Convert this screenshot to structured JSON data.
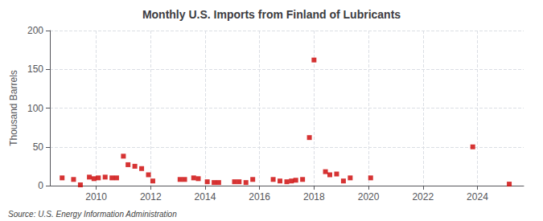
{
  "chart_data": {
    "type": "scatter",
    "title": "Monthly U.S. Imports from Finland of Lubricants",
    "ylabel": "Thousand Barrels",
    "annotations": [
      "Source: U.S. Energy Information Administration"
    ],
    "color": "#cc0000",
    "marker": "square",
    "grid": true,
    "xlim": [
      2008.3,
      2025.7
    ],
    "xticks": [
      2010,
      2012,
      2014,
      2016,
      2018,
      2020,
      2022,
      2024
    ],
    "ylim": [
      0,
      200
    ],
    "yticks": [
      0,
      50,
      100,
      150,
      200
    ],
    "x": [
      2008.75,
      2009.17,
      2009.42,
      2009.75,
      2009.92,
      2010.08,
      2010.33,
      2010.58,
      2010.75,
      2011.0,
      2011.17,
      2011.42,
      2011.67,
      2011.92,
      2012.08,
      2013.08,
      2013.25,
      2013.58,
      2013.75,
      2014.08,
      2014.33,
      2014.5,
      2015.08,
      2015.25,
      2015.5,
      2015.75,
      2016.5,
      2016.75,
      2017.0,
      2017.17,
      2017.33,
      2017.58,
      2017.83,
      2018.0,
      2018.42,
      2018.58,
      2018.83,
      2019.08,
      2019.33,
      2020.08,
      2023.83,
      2025.17
    ],
    "values": [
      10,
      8,
      1,
      11,
      9,
      10,
      11,
      10,
      10,
      38,
      27,
      25,
      22,
      14,
      6,
      8,
      8,
      10,
      9,
      5,
      4,
      4,
      5,
      5,
      4,
      8,
      8,
      6,
      5,
      6,
      7,
      8,
      62,
      162,
      18,
      14,
      15,
      6,
      10,
      10,
      50,
      2
    ]
  }
}
